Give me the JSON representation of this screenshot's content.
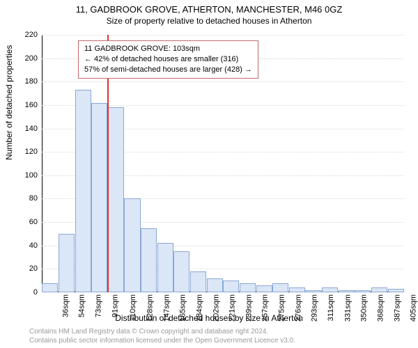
{
  "title": {
    "main": "11, GADBROOK GROVE, ATHERTON, MANCHESTER, M46 0GZ",
    "sub": "Size of property relative to detached houses in Atherton"
  },
  "axes": {
    "ylabel": "Number of detached properties",
    "xlabel": "Distribution of detached houses by size in Atherton",
    "ymax": 220,
    "yticks": [
      0,
      20,
      40,
      60,
      80,
      100,
      120,
      140,
      160,
      180,
      200,
      220
    ],
    "grid_color": "#d8d8d8"
  },
  "bars": {
    "fill": "#dbe6f6",
    "border": "#8aa8d6",
    "categories": [
      "36sqm",
      "54sqm",
      "73sqm",
      "91sqm",
      "110sqm",
      "128sqm",
      "147sqm",
      "165sqm",
      "184sqm",
      "202sqm",
      "221sqm",
      "239sqm",
      "257sqm",
      "275sqm",
      "276sqm",
      "293sqm",
      "311sqm",
      "331sqm",
      "350sqm",
      "368sqm",
      "387sqm",
      "405sqm"
    ],
    "values": [
      8,
      50,
      173,
      162,
      158,
      80,
      55,
      42,
      35,
      18,
      12,
      10,
      8,
      6,
      8,
      4,
      2,
      4,
      2,
      2,
      4,
      3
    ]
  },
  "marker": {
    "color": "#e03030",
    "index": 3
  },
  "annotation": {
    "border": "#c46a6a",
    "line1": "11 GADBROOK GROVE: 103sqm",
    "line2": "← 42% of detached houses are smaller (316)",
    "line3": "57% of semi-detached houses are larger (428) →"
  },
  "footer": {
    "line1": "Contains HM Land Registry data © Crown copyright and database right 2024.",
    "line2": "Contains public sector information licensed under the Open Government Licence v3.0."
  }
}
